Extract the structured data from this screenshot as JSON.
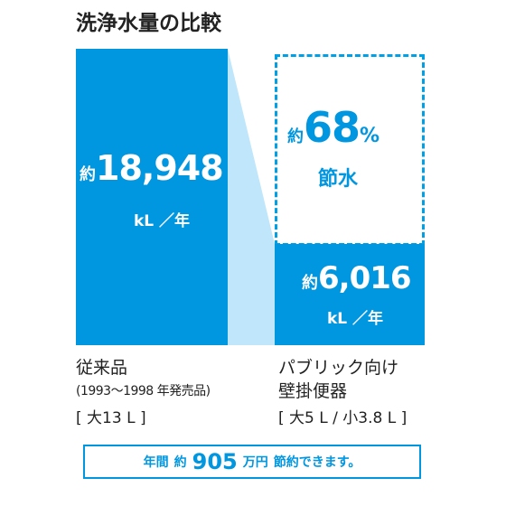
{
  "title": "洗浄水量の比較",
  "chart_data": {
    "type": "bar",
    "title": "洗浄水量の比較",
    "categories": [
      "従来品",
      "パブリック向け壁掛便器"
    ],
    "values": [
      18948,
      6016
    ],
    "unit": "kL／年",
    "value_labels": [
      {
        "prefix": "約",
        "value": "18,948",
        "unit": "kL ／年"
      },
      {
        "prefix": "約",
        "value": "6,016",
        "unit": "kL ／年"
      }
    ],
    "saving": {
      "prefix": "約",
      "value": "68",
      "suffix": "%",
      "label": "節水"
    },
    "colors": {
      "bar": "#0096e0",
      "connector": "#bfe6fa",
      "accent": "#0096e0"
    }
  },
  "labels": {
    "old_name": "従来品",
    "old_years": "(1993〜1998 年発売品)",
    "old_spec": "[ 大13 L ]",
    "new_line1": "パブリック向け",
    "new_line2": "壁掛便器",
    "new_spec": "[ 大5 L / 小3.8 L ]"
  },
  "footer": {
    "pre": "年間",
    "approx": "約",
    "value": "905",
    "unit": "万円",
    "post": "節約できます。"
  }
}
